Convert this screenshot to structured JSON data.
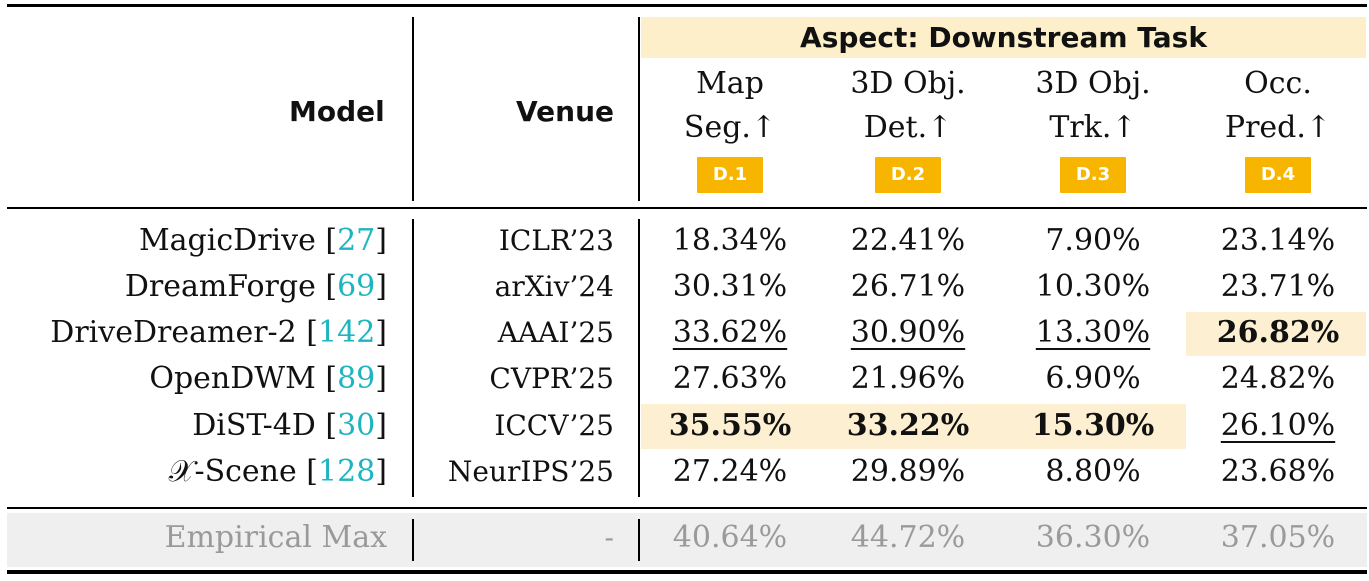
{
  "header": {
    "model_label": "Model",
    "venue_label": "Venue",
    "aspect_title": "Aspect: Downstream Task",
    "columns": [
      {
        "line1": "Map",
        "line2": "Seg.↑",
        "badge": "D.1"
      },
      {
        "line1": "3D Obj.",
        "line2": "Det.↑",
        "badge": "D.2"
      },
      {
        "line1": "3D Obj.",
        "line2": "Trk.↑",
        "badge": "D.3"
      },
      {
        "line1": "Occ.",
        "line2": "Pred.↑",
        "badge": "D.4"
      }
    ]
  },
  "rows": [
    {
      "model": "MagicDrive [",
      "ref": "27",
      "close": "]",
      "venue": "ICLR’23",
      "values": [
        "18.34%",
        "22.41%",
        "7.90%",
        "23.14%"
      ]
    },
    {
      "model": "DreamForge [",
      "ref": "69",
      "close": "]",
      "venue": "arXiv’24",
      "values": [
        "30.31%",
        "26.71%",
        "10.30%",
        "23.71%"
      ]
    },
    {
      "model": "DriveDreamer-2 [",
      "ref": "142",
      "close": "]",
      "venue": "AAAI’25",
      "values": [
        "33.62%",
        "30.90%",
        "13.30%",
        "26.82%"
      ]
    },
    {
      "model": "OpenDWM [",
      "ref": "89",
      "close": "]",
      "venue": "CVPR’25",
      "values": [
        "27.63%",
        "21.96%",
        "6.90%",
        "24.82%"
      ]
    },
    {
      "model": "DiST-4D [",
      "ref": "30",
      "close": "]",
      "venue": "ICCV’25",
      "values": [
        "35.55%",
        "33.22%",
        "15.30%",
        "26.10%"
      ]
    },
    {
      "model": "𝒳-Scene [",
      "ref": "128",
      "close": "]",
      "venue": "NeurIPS’25",
      "values": [
        "27.24%",
        "29.89%",
        "8.80%",
        "23.68%"
      ]
    }
  ],
  "empirical_max": {
    "label": "Empirical Max",
    "venue": "-",
    "values": [
      "40.64%",
      "44.72%",
      "36.30%",
      "37.05%"
    ]
  },
  "colors": {
    "highlight": "#fdf0d2",
    "badge": "#f7b500",
    "ref_link": "#1fb5c0",
    "muted": "#9a9a9a"
  }
}
